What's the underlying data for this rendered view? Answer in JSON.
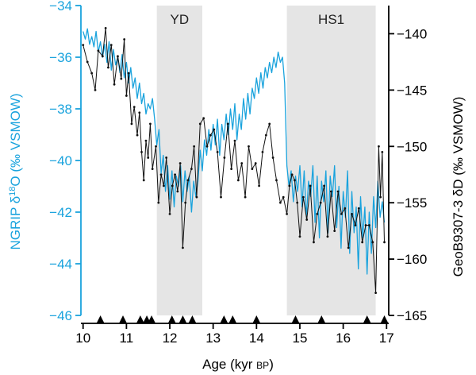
{
  "chart_data": {
    "type": "line",
    "xlabel": "Age (kyr BP)",
    "xlabel_main": "Age (kyr ",
    "xlabel_unit": "BP",
    "xlabel_close": ")",
    "ylabel_left": "NGRIP δ18O (‰ VSMOW)",
    "ylabel_left_parts": [
      "NGRIP δ",
      "18",
      "O (‰ VSMOW)"
    ],
    "ylabel_right": "GeoB9307-3 δD (‰ VSMOW)",
    "xlim": [
      9.95,
      17.05
    ],
    "ylim_left": [
      -46,
      -34
    ],
    "ylim_right": [
      -165,
      -137.5
    ],
    "x_ticks": [
      10,
      11,
      12,
      13,
      14,
      15,
      16,
      17
    ],
    "y_left_ticks": [
      -34,
      -36,
      -38,
      -40,
      -42,
      -44,
      -46
    ],
    "y_right_ticks": [
      -140,
      -145,
      -150,
      -155,
      -160,
      -165
    ],
    "shaded_periods": [
      {
        "label": "YD",
        "start": 11.7,
        "end": 12.75
      },
      {
        "label": "HS1",
        "start": 14.7,
        "end": 16.75
      }
    ],
    "age_control_points": [
      10.4,
      10.92,
      11.32,
      11.47,
      11.58,
      12.05,
      12.3,
      12.52,
      13.25,
      13.45,
      14.0,
      14.9,
      15.5,
      16.55,
      16.95
    ],
    "colors": {
      "ngrip": "#1aa3dd",
      "geob": "#111111",
      "shading": "#e5e5e5"
    },
    "series": [
      {
        "name": "NGRIP δ18O",
        "axis": "left",
        "x": [
          10.0,
          10.05,
          10.1,
          10.15,
          10.2,
          10.25,
          10.3,
          10.35,
          10.4,
          10.45,
          10.5,
          10.55,
          10.6,
          10.65,
          10.7,
          10.75,
          10.8,
          10.85,
          10.9,
          10.95,
          11.0,
          11.05,
          11.1,
          11.15,
          11.2,
          11.25,
          11.3,
          11.35,
          11.4,
          11.45,
          11.5,
          11.55,
          11.6,
          11.65,
          11.7,
          11.75,
          11.8,
          11.85,
          11.9,
          11.95,
          12.0,
          12.05,
          12.1,
          12.15,
          12.2,
          12.25,
          12.3,
          12.35,
          12.4,
          12.45,
          12.5,
          12.55,
          12.6,
          12.65,
          12.7,
          12.75,
          12.8,
          12.85,
          12.9,
          12.95,
          13.0,
          13.05,
          13.1,
          13.15,
          13.2,
          13.25,
          13.3,
          13.35,
          13.4,
          13.45,
          13.5,
          13.55,
          13.6,
          13.65,
          13.7,
          13.75,
          13.8,
          13.85,
          13.9,
          13.95,
          14.0,
          14.05,
          14.1,
          14.15,
          14.2,
          14.25,
          14.3,
          14.35,
          14.4,
          14.45,
          14.5,
          14.55,
          14.6,
          14.65,
          14.7,
          14.75,
          14.8,
          14.85,
          14.9,
          14.95,
          15.0,
          15.05,
          15.1,
          15.15,
          15.2,
          15.25,
          15.3,
          15.35,
          15.4,
          15.45,
          15.5,
          15.55,
          15.6,
          15.65,
          15.7,
          15.75,
          15.8,
          15.85,
          15.9,
          15.95,
          16.0,
          16.05,
          16.1,
          16.15,
          16.2,
          16.25,
          16.3,
          16.35,
          16.4,
          16.45,
          16.5,
          16.55,
          16.6,
          16.65,
          16.7,
          16.75,
          16.8,
          16.85,
          16.9,
          16.95
        ],
        "y": [
          -35.0,
          -35.3,
          -34.9,
          -35.5,
          -35.2,
          -35.6,
          -35.0,
          -35.8,
          -35.4,
          -36.0,
          -35.5,
          -36.2,
          -35.4,
          -36.5,
          -35.7,
          -36.3,
          -36.0,
          -36.6,
          -35.9,
          -36.8,
          -36.2,
          -37.0,
          -36.4,
          -37.2,
          -36.8,
          -37.6,
          -37.0,
          -37.8,
          -37.4,
          -38.2,
          -37.8,
          -38.0,
          -37.6,
          -38.4,
          -39.4,
          -38.8,
          -40.5,
          -39.8,
          -41.2,
          -40.2,
          -41.5,
          -40.4,
          -41.8,
          -40.6,
          -41.0,
          -40.2,
          -41.6,
          -40.4,
          -41.2,
          -40.6,
          -42.0,
          -40.8,
          -41.4,
          -40.8,
          -39.6,
          -40.4,
          -39.2,
          -39.8,
          -38.8,
          -39.6,
          -38.6,
          -39.4,
          -38.4,
          -39.8,
          -38.6,
          -39.2,
          -38.2,
          -39.0,
          -38.0,
          -38.8,
          -37.8,
          -39.2,
          -38.2,
          -38.8,
          -37.6,
          -38.4,
          -37.4,
          -38.2,
          -37.2,
          -37.6,
          -36.8,
          -37.4,
          -36.6,
          -37.2,
          -36.4,
          -36.8,
          -36.2,
          -36.6,
          -36.0,
          -36.4,
          -35.8,
          -36.2,
          -36.0,
          -37.0,
          -40.2,
          -41.0,
          -40.4,
          -41.6,
          -40.6,
          -41.2,
          -40.2,
          -41.8,
          -40.4,
          -42.2,
          -40.8,
          -41.4,
          -40.2,
          -42.4,
          -40.6,
          -43.0,
          -40.8,
          -41.6,
          -40.4,
          -42.8,
          -40.6,
          -41.4,
          -40.2,
          -42.6,
          -41.0,
          -43.4,
          -41.2,
          -42.2,
          -40.4,
          -43.6,
          -41.2,
          -42.8,
          -41.8,
          -44.2,
          -41.4,
          -43.0,
          -41.8,
          -44.4,
          -42.0,
          -43.6,
          -41.4,
          -42.6,
          -40.8,
          -42.2,
          -41.6,
          -42.4
        ]
      },
      {
        "name": "GeoB9307-3 δD",
        "axis": "right",
        "x": [
          10.0,
          10.1,
          10.2,
          10.28,
          10.35,
          10.45,
          10.52,
          10.58,
          10.65,
          10.72,
          10.8,
          10.88,
          10.95,
          11.0,
          11.05,
          11.12,
          11.18,
          11.25,
          11.3,
          11.35,
          11.4,
          11.45,
          11.5,
          11.55,
          11.6,
          11.68,
          11.74,
          11.8,
          11.86,
          11.92,
          12.0,
          12.06,
          12.12,
          12.18,
          12.24,
          12.3,
          12.36,
          12.42,
          12.5,
          12.56,
          12.62,
          12.7,
          12.78,
          12.86,
          12.94,
          13.02,
          13.1,
          13.18,
          13.26,
          13.34,
          13.42,
          13.5,
          13.58,
          13.66,
          13.74,
          13.82,
          13.9,
          13.98,
          14.06,
          14.14,
          14.22,
          14.3,
          14.38,
          14.46,
          14.55,
          14.62,
          14.7,
          14.76,
          14.82,
          14.88,
          14.94,
          15.0,
          15.08,
          15.16,
          15.24,
          15.32,
          15.4,
          15.48,
          15.56,
          15.64,
          15.72,
          15.8,
          15.88,
          15.96,
          16.04,
          16.12,
          16.2,
          16.28,
          16.36,
          16.44,
          16.52,
          16.6,
          16.68,
          16.75,
          16.82,
          16.86,
          16.9,
          16.95
        ],
        "y": [
          -141.0,
          -142.5,
          -143.5,
          -145.0,
          -141.5,
          -142.0,
          -139.5,
          -143.0,
          -141.0,
          -144.5,
          -142.0,
          -144.0,
          -140.5,
          -145.5,
          -143.5,
          -148.0,
          -146.5,
          -149.0,
          -147.0,
          -150.5,
          -153.0,
          -149.5,
          -151.0,
          -148.0,
          -152.0,
          -150.0,
          -155.0,
          -152.5,
          -153.5,
          -151.0,
          -156.0,
          -153.5,
          -152.5,
          -154.0,
          -151.5,
          -159.0,
          -155.0,
          -153.0,
          -152.0,
          -150.0,
          -154.5,
          -148.0,
          -147.5,
          -150.0,
          -149.0,
          -148.5,
          -150.5,
          -154.5,
          -151.0,
          -148.0,
          -152.0,
          -149.5,
          -153.0,
          -151.5,
          -154.5,
          -150.0,
          -152.0,
          -151.5,
          -153.5,
          -150.5,
          -149.0,
          -148.0,
          -151.0,
          -153.0,
          -155.0,
          -154.5,
          -156.0,
          -153.5,
          -152.5,
          -153.0,
          -155.0,
          -158.0,
          -154.5,
          -156.5,
          -153.5,
          -158.5,
          -156.0,
          -155.0,
          -153.5,
          -158.0,
          -154.0,
          -157.5,
          -154.0,
          -156.0,
          -155.5,
          -159.0,
          -156.0,
          -157.0,
          -155.5,
          -158.5,
          -157.0,
          -157.0,
          -158.5,
          -163.0,
          -150.0,
          -154.5,
          -150.5,
          -158.5
        ]
      }
    ]
  }
}
